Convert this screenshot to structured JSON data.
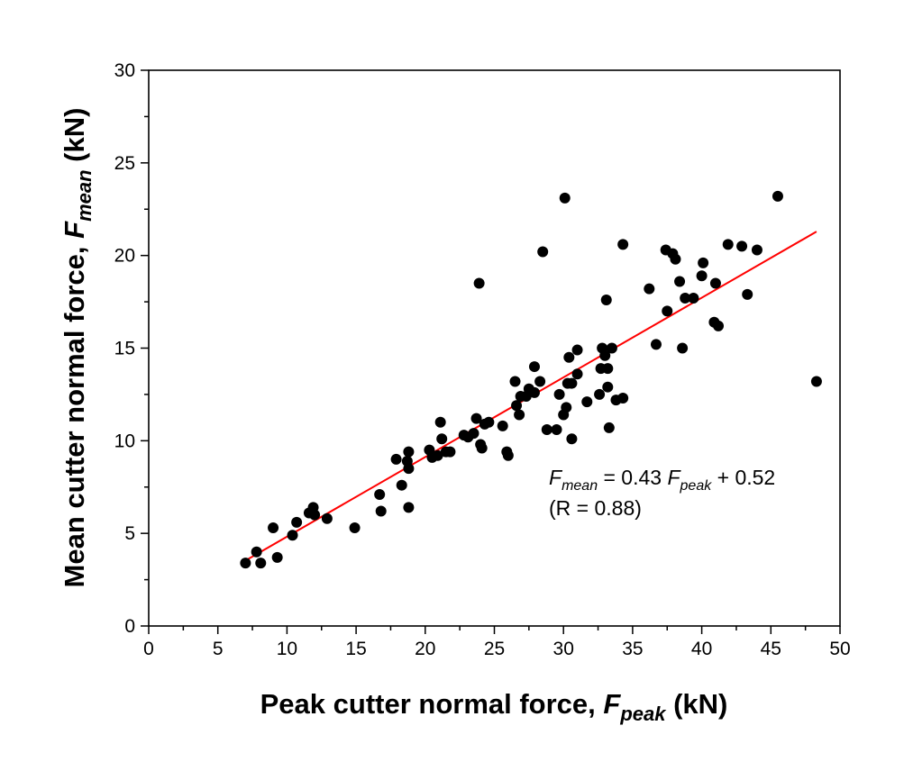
{
  "chart_data": {
    "type": "scatter",
    "xlabel": {
      "main": "Peak cutter normal force, ",
      "sym": "F",
      "sub": "peak",
      "unit": " (kN)"
    },
    "ylabel": {
      "main": "Mean cutter normal force, ",
      "sym": "F",
      "sub": "mean",
      "unit": " (kN)"
    },
    "xlim": [
      0,
      50
    ],
    "ylim": [
      0,
      30
    ],
    "xticks": [
      "0",
      "5",
      "10",
      "15",
      "20",
      "25",
      "30",
      "35",
      "40",
      "45",
      "50"
    ],
    "yticks": [
      "0",
      "5",
      "10",
      "15",
      "20",
      "25",
      "30"
    ],
    "grid": false,
    "colors": {
      "points": "#000000",
      "fit": "#ff0000"
    },
    "fit_line": {
      "slope": 0.43,
      "intercept": 0.52,
      "x_range": [
        7,
        48.3
      ]
    },
    "annotation": {
      "sym1": "F",
      "sub1": "mean",
      "mid": " = 0.43 ",
      "sym2": "F",
      "sub2": "peak",
      "end": " + 0.52",
      "line2": "(R = 0.88)"
    },
    "points": [
      [
        7.0,
        3.4
      ],
      [
        7.8,
        4.0
      ],
      [
        8.1,
        3.4
      ],
      [
        9.0,
        5.3
      ],
      [
        9.3,
        3.7
      ],
      [
        10.4,
        4.9
      ],
      [
        10.7,
        5.6
      ],
      [
        11.6,
        6.1
      ],
      [
        11.9,
        6.4
      ],
      [
        12.0,
        6.0
      ],
      [
        12.9,
        5.8
      ],
      [
        14.9,
        5.3
      ],
      [
        16.7,
        7.1
      ],
      [
        16.8,
        6.2
      ],
      [
        17.9,
        9.0
      ],
      [
        18.3,
        7.6
      ],
      [
        18.7,
        8.9
      ],
      [
        18.8,
        9.4
      ],
      [
        18.8,
        8.5
      ],
      [
        18.8,
        6.4
      ],
      [
        20.3,
        9.5
      ],
      [
        20.5,
        9.1
      ],
      [
        20.9,
        9.2
      ],
      [
        21.1,
        11.0
      ],
      [
        21.2,
        10.1
      ],
      [
        21.5,
        9.4
      ],
      [
        21.8,
        9.4
      ],
      [
        22.8,
        10.3
      ],
      [
        23.1,
        10.2
      ],
      [
        23.5,
        10.4
      ],
      [
        23.7,
        11.2
      ],
      [
        23.9,
        18.5
      ],
      [
        24.0,
        9.8
      ],
      [
        24.1,
        9.6
      ],
      [
        24.3,
        10.9
      ],
      [
        24.6,
        11.0
      ],
      [
        25.6,
        10.8
      ],
      [
        25.9,
        9.4
      ],
      [
        26.0,
        9.2
      ],
      [
        26.5,
        13.2
      ],
      [
        26.6,
        11.9
      ],
      [
        26.8,
        11.4
      ],
      [
        26.9,
        12.4
      ],
      [
        27.3,
        12.4
      ],
      [
        27.5,
        12.8
      ],
      [
        27.9,
        14.0
      ],
      [
        27.9,
        12.6
      ],
      [
        28.3,
        13.2
      ],
      [
        28.5,
        20.2
      ],
      [
        28.8,
        10.6
      ],
      [
        29.5,
        10.6
      ],
      [
        29.7,
        12.5
      ],
      [
        30.0,
        11.4
      ],
      [
        30.1,
        23.1
      ],
      [
        30.2,
        11.8
      ],
      [
        30.3,
        13.1
      ],
      [
        30.4,
        14.5
      ],
      [
        30.6,
        13.1
      ],
      [
        30.6,
        10.1
      ],
      [
        31.0,
        14.9
      ],
      [
        31.0,
        13.6
      ],
      [
        31.7,
        12.1
      ],
      [
        32.6,
        12.5
      ],
      [
        32.7,
        13.9
      ],
      [
        32.8,
        15.0
      ],
      [
        33.0,
        14.6
      ],
      [
        33.1,
        17.6
      ],
      [
        33.2,
        12.9
      ],
      [
        33.2,
        13.9
      ],
      [
        33.3,
        10.7
      ],
      [
        33.5,
        15.0
      ],
      [
        33.8,
        12.2
      ],
      [
        34.3,
        20.6
      ],
      [
        34.3,
        12.3
      ],
      [
        36.2,
        18.2
      ],
      [
        36.7,
        15.2
      ],
      [
        37.4,
        20.3
      ],
      [
        37.5,
        17.0
      ],
      [
        37.9,
        20.1
      ],
      [
        38.1,
        19.8
      ],
      [
        38.4,
        18.6
      ],
      [
        38.6,
        15.0
      ],
      [
        38.8,
        17.7
      ],
      [
        39.4,
        17.7
      ],
      [
        40.0,
        18.9
      ],
      [
        40.1,
        19.6
      ],
      [
        40.9,
        16.4
      ],
      [
        41.0,
        18.5
      ],
      [
        41.2,
        16.2
      ],
      [
        41.9,
        20.6
      ],
      [
        42.9,
        20.5
      ],
      [
        43.3,
        17.9
      ],
      [
        44.0,
        20.3
      ],
      [
        45.5,
        23.2
      ],
      [
        48.3,
        13.2
      ]
    ]
  }
}
